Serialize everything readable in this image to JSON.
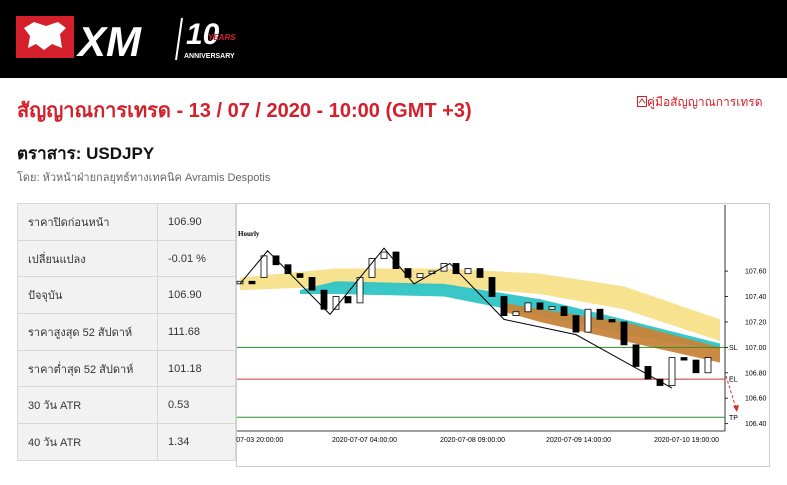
{
  "header": {
    "logo": "XM",
    "anniversary_number": "10",
    "anniversary_years": "YEARS",
    "anniversary_word": "ANNIVERSARY"
  },
  "title": "สัญญาณการเทรด - 13 / 07 / 2020 - 10:00 (GMT +3)",
  "guide_link": "คู่มือสัญญาณการเทรด",
  "instrument": "ตราสาร: USDJPY",
  "author": "โดย: หัวหน้าฝ่ายกลยุทธ์ทางเทคนิค Avramis Despotis",
  "table": {
    "rows": [
      [
        "ราคาปิดก่อนหน้า",
        "106.90"
      ],
      [
        "เปลี่ยนแปลง",
        "-0.01 %"
      ],
      [
        "ปัจจุบัน",
        "106.90"
      ],
      [
        "ราคาสูงสุด 52 สัปดาห์",
        "111.68"
      ],
      [
        "ราคาต่ำสุด 52 สัปดาห์",
        "101.18"
      ],
      [
        "30 วัน ATR",
        "0.53"
      ],
      [
        "40 วัน ATR",
        "1.34"
      ]
    ]
  },
  "chart_data": {
    "type": "candlestick",
    "label": "Hourly",
    "xtick_labels": [
      "0-07-03 20:00:00",
      "2020-07-07 04:00:00",
      "2020-07-08 09:00:00",
      "2020-07-09 14:00:00",
      "2020-07-10 19:00:00"
    ],
    "open": [
      107.5,
      107.52,
      107.55,
      107.72,
      107.65,
      107.58,
      107.55,
      107.45,
      107.3,
      107.4,
      107.35,
      107.55,
      107.7,
      107.75,
      107.62,
      107.55,
      107.58,
      107.6,
      107.66,
      107.58,
      107.62,
      107.55,
      107.4,
      107.25,
      107.28,
      107.35,
      107.3,
      107.32,
      107.25,
      107.12,
      107.3,
      107.22,
      107.2,
      107.02,
      106.85,
      106.75,
      106.7,
      106.92,
      106.9,
      106.8
    ],
    "close": [
      107.52,
      107.5,
      107.72,
      107.65,
      107.58,
      107.55,
      107.45,
      107.3,
      107.4,
      107.35,
      107.55,
      107.7,
      107.75,
      107.62,
      107.55,
      107.58,
      107.6,
      107.66,
      107.58,
      107.62,
      107.55,
      107.4,
      107.25,
      107.28,
      107.35,
      107.3,
      107.32,
      107.25,
      107.12,
      107.3,
      107.22,
      107.2,
      107.02,
      106.85,
      106.75,
      106.7,
      106.92,
      106.9,
      106.8,
      106.92
    ],
    "bands": [
      {
        "color": "#f7e08a",
        "upper": [
          107.55,
          107.62,
          107.62,
          107.58,
          107.48,
          107.22
        ],
        "lower": [
          107.45,
          107.48,
          107.48,
          107.42,
          107.3,
          107.05
        ]
      },
      {
        "color": "#2ec4c4",
        "upper": [
          107.45,
          107.52,
          107.5,
          107.38,
          107.22,
          107.03
        ],
        "lower": [
          107.42,
          107.42,
          107.4,
          107.25,
          107.1,
          106.98
        ]
      },
      {
        "color": "#c8843a",
        "upper": [
          107.35,
          107.3,
          107.2,
          107.0
        ],
        "lower": [
          107.28,
          107.2,
          107.05,
          106.88
        ]
      }
    ],
    "zigzag": [
      107.5,
      107.76,
      107.26,
      107.78,
      107.5,
      107.66,
      107.22,
      107.1,
      106.68
    ],
    "levels": [
      {
        "name": "SL",
        "value": 107.0,
        "color": "#2e8b2e"
      },
      {
        "name": "EL",
        "value": 106.75,
        "color": "#d03030"
      },
      {
        "name": "TP",
        "value": 106.45,
        "color": "#2e8b2e"
      }
    ],
    "ylim": [
      106.35,
      108.12
    ],
    "yticks": [
      {
        "value": 107.6,
        "label": "107.60"
      },
      {
        "value": 107.4,
        "label": "107.40"
      },
      {
        "value": 107.2,
        "label": "107.20"
      },
      {
        "value": 107.0,
        "label": "107.00"
      },
      {
        "value": 106.8,
        "label": "106.80"
      },
      {
        "value": 106.6,
        "label": "106.60"
      },
      {
        "value": 106.4,
        "label": "106.40"
      }
    ]
  }
}
